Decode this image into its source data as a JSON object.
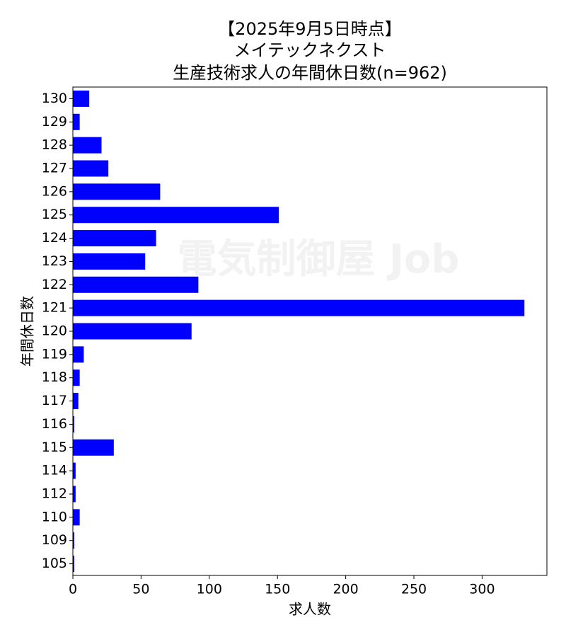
{
  "chart_data": {
    "type": "barh",
    "title": [
      "【2025年9月5日時点】",
      "メイテックネクスト",
      "生産技術求人の年間休日数(n=962)"
    ],
    "watermark": "電気制御屋 Job",
    "x_label": "求人数",
    "y_label": "年間休日数",
    "categories": [
      "130",
      "129",
      "128",
      "127",
      "126",
      "125",
      "124",
      "123",
      "122",
      "121",
      "120",
      "119",
      "118",
      "117",
      "116",
      "115",
      "114",
      "112",
      "110",
      "109",
      "105"
    ],
    "values": [
      12,
      5,
      21,
      26,
      64,
      151,
      61,
      53,
      92,
      331,
      87,
      8,
      5,
      4,
      1,
      30,
      2,
      2,
      5,
      1,
      1
    ],
    "color": "#0000ff",
    "xlim": [
      0,
      347.5
    ],
    "xticks": [
      0,
      50,
      100,
      150,
      200,
      250,
      300
    ],
    "grid": false
  }
}
